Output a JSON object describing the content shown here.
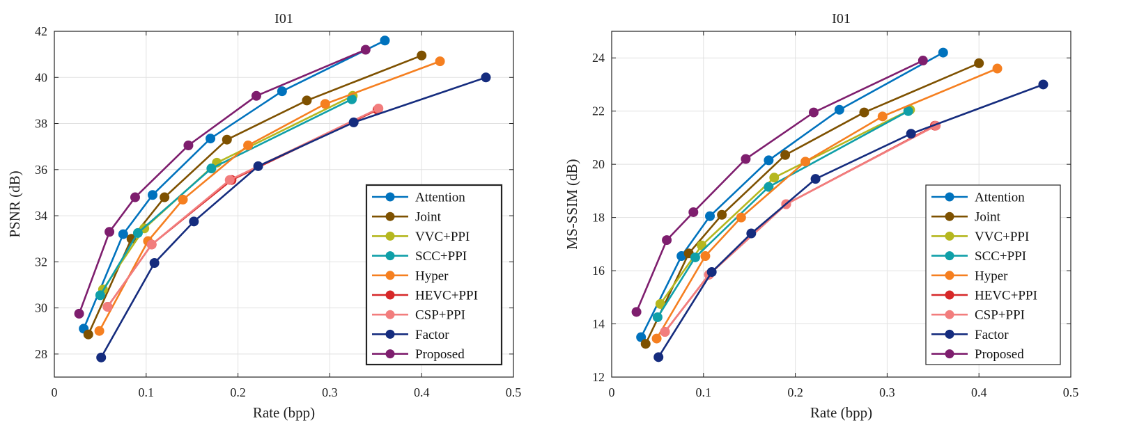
{
  "chart_data": [
    {
      "type": "line",
      "title": "I01",
      "xlabel": "Rate (bpp)",
      "ylabel": "PSNR (dB)",
      "xlim": [
        0,
        0.5
      ],
      "ylim": [
        27,
        42
      ],
      "xticks": [
        "0",
        "0.1",
        "0.2",
        "0.3",
        "0.4",
        "0.5"
      ],
      "yticks": [
        "28",
        "30",
        "32",
        "34",
        "36",
        "38",
        "40",
        "42"
      ],
      "grid": true,
      "legend_position": "bottom-right",
      "series": [
        {
          "name": "Attention",
          "color": "#0072BD",
          "points": [
            [
              0.032,
              29.1
            ],
            [
              0.075,
              33.2
            ],
            [
              0.107,
              34.9
            ],
            [
              0.17,
              37.35
            ],
            [
              0.248,
              39.4
            ],
            [
              0.36,
              41.6
            ]
          ]
        },
        {
          "name": "Joint",
          "color": "#7E5100",
          "points": [
            [
              0.037,
              28.85
            ],
            [
              0.084,
              33.0
            ],
            [
              0.12,
              34.8
            ],
            [
              0.188,
              37.3
            ],
            [
              0.275,
              39.0
            ],
            [
              0.4,
              40.95
            ]
          ]
        },
        {
          "name": "VVC+PPI",
          "color": "#B5B71F",
          "points": [
            [
              0.053,
              30.8
            ],
            [
              0.098,
              33.45
            ],
            [
              0.177,
              36.3
            ],
            [
              0.325,
              39.2
            ]
          ]
        },
        {
          "name": "SCC+PPI",
          "color": "#0F9FA8",
          "points": [
            [
              0.05,
              30.55
            ],
            [
              0.091,
              33.25
            ],
            [
              0.171,
              36.05
            ],
            [
              0.324,
              39.05
            ]
          ]
        },
        {
          "name": "Hyper",
          "color": "#F57F20",
          "points": [
            [
              0.049,
              29.0
            ],
            [
              0.102,
              32.9
            ],
            [
              0.14,
              34.7
            ],
            [
              0.211,
              37.05
            ],
            [
              0.295,
              38.85
            ],
            [
              0.42,
              40.7
            ]
          ]
        },
        {
          "name": "HEVC+PPI",
          "color": "#D62728",
          "points": [
            [
              0.058,
              30.05
            ],
            [
              0.106,
              32.75
            ],
            [
              0.193,
              35.55
            ],
            [
              0.352,
              38.6
            ]
          ]
        },
        {
          "name": "CSP+PPI",
          "color": "#F27D7D",
          "points": [
            [
              0.058,
              30.05
            ],
            [
              0.106,
              32.75
            ],
            [
              0.191,
              35.55
            ],
            [
              0.353,
              38.65
            ]
          ]
        },
        {
          "name": "Factor",
          "color": "#152C7E",
          "points": [
            [
              0.051,
              27.85
            ],
            [
              0.109,
              31.95
            ],
            [
              0.152,
              33.75
            ],
            [
              0.222,
              36.15
            ],
            [
              0.326,
              38.05
            ],
            [
              0.47,
              40.0
            ]
          ]
        },
        {
          "name": "Proposed",
          "color": "#7E1E6E",
          "points": [
            [
              0.027,
              29.75
            ],
            [
              0.06,
              33.3
            ],
            [
              0.088,
              34.8
            ],
            [
              0.146,
              37.05
            ],
            [
              0.22,
              39.2
            ],
            [
              0.339,
              41.2
            ]
          ]
        }
      ]
    },
    {
      "type": "line",
      "title": "I01",
      "xlabel": "Rate (bpp)",
      "ylabel": "MS-SSIM (dB)",
      "xlim": [
        0,
        0.5
      ],
      "ylim": [
        12,
        25
      ],
      "xticks": [
        "0",
        "0.1",
        "0.2",
        "0.3",
        "0.4",
        "0.5"
      ],
      "yticks": [
        "12",
        "14",
        "16",
        "18",
        "20",
        "22",
        "24"
      ],
      "grid": true,
      "legend_position": "bottom-right",
      "series": [
        {
          "name": "Attention",
          "color": "#0072BD",
          "points": [
            [
              0.032,
              13.5
            ],
            [
              0.076,
              16.55
            ],
            [
              0.107,
              18.05
            ],
            [
              0.171,
              20.15
            ],
            [
              0.248,
              22.05
            ],
            [
              0.361,
              24.2
            ]
          ]
        },
        {
          "name": "Joint",
          "color": "#7E5100",
          "points": [
            [
              0.037,
              13.25
            ],
            [
              0.084,
              16.65
            ],
            [
              0.12,
              18.1
            ],
            [
              0.189,
              20.35
            ],
            [
              0.275,
              21.95
            ],
            [
              0.4,
              23.8
            ]
          ]
        },
        {
          "name": "VVC+PPI",
          "color": "#B5B71F",
          "points": [
            [
              0.053,
              14.75
            ],
            [
              0.098,
              16.95
            ],
            [
              0.177,
              19.5
            ],
            [
              0.325,
              22.05
            ]
          ]
        },
        {
          "name": "SCC+PPI",
          "color": "#0F9FA8",
          "points": [
            [
              0.05,
              14.25
            ],
            [
              0.091,
              16.5
            ],
            [
              0.171,
              19.15
            ],
            [
              0.323,
              22.0
            ]
          ]
        },
        {
          "name": "Hyper",
          "color": "#F57F20",
          "points": [
            [
              0.049,
              13.45
            ],
            [
              0.102,
              16.55
            ],
            [
              0.141,
              18.0
            ],
            [
              0.211,
              20.1
            ],
            [
              0.295,
              21.8
            ],
            [
              0.42,
              23.6
            ]
          ]
        },
        {
          "name": "HEVC+PPI",
          "color": "#D62728",
          "points": [
            [
              0.058,
              13.7
            ],
            [
              0.106,
              15.85
            ],
            [
              0.19,
              18.5
            ],
            [
              0.352,
              21.45
            ]
          ]
        },
        {
          "name": "CSP+PPI",
          "color": "#F27D7D",
          "points": [
            [
              0.058,
              13.7
            ],
            [
              0.106,
              15.85
            ],
            [
              0.19,
              18.5
            ],
            [
              0.353,
              21.45
            ]
          ]
        },
        {
          "name": "Factor",
          "color": "#152C7E",
          "points": [
            [
              0.051,
              12.75
            ],
            [
              0.109,
              15.95
            ],
            [
              0.152,
              17.4
            ],
            [
              0.222,
              19.45
            ],
            [
              0.326,
              21.15
            ],
            [
              0.47,
              23.0
            ]
          ]
        },
        {
          "name": "Proposed",
          "color": "#7E1E6E",
          "points": [
            [
              0.027,
              14.45
            ],
            [
              0.06,
              17.15
            ],
            [
              0.089,
              18.2
            ],
            [
              0.146,
              20.2
            ],
            [
              0.22,
              21.95
            ],
            [
              0.339,
              23.9
            ]
          ]
        }
      ]
    }
  ]
}
